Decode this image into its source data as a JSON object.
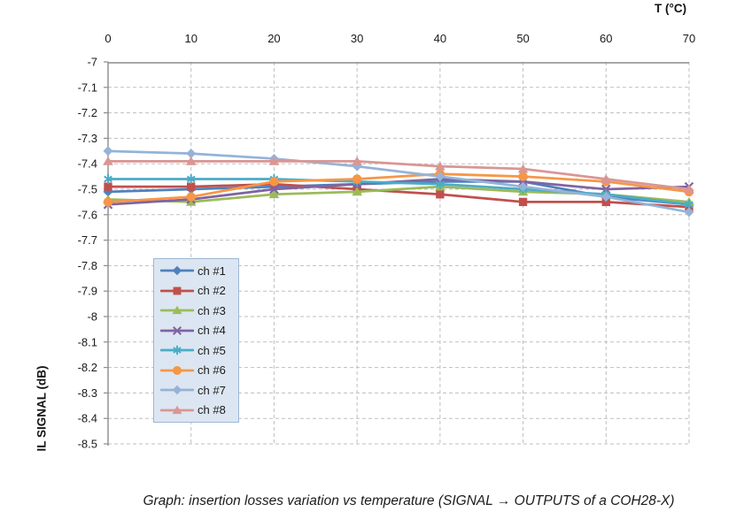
{
  "caption": "Graph: insertion losses variation vs temperature (SIGNAL → OUTPUTS of a COH28-X)",
  "chart_data": {
    "type": "line",
    "title": "",
    "x_axis": {
      "label": "T (°C)",
      "position": "top",
      "tick_labels": [
        "0",
        "10",
        "20",
        "30",
        "40",
        "50",
        "60",
        "70"
      ],
      "range": [
        0,
        70
      ]
    },
    "y_axis": {
      "label": "IL SIGNAL (dB)",
      "tick_labels": [
        "-7",
        "-7.1",
        "-7.2",
        "-7.3",
        "-7.4",
        "-7.5",
        "-7.6",
        "-7.7",
        "-7.8",
        "-7.9",
        "-8",
        "-8.1",
        "-8.2",
        "-8.3",
        "-8.4",
        "-8.5"
      ],
      "range": [
        -8.5,
        -7
      ]
    },
    "x": [
      0,
      10,
      20,
      30,
      40,
      50,
      60,
      70
    ],
    "series": [
      {
        "name": "ch #1",
        "color": "#4F81BD",
        "marker": "diamond",
        "values": [
          -7.51,
          -7.5,
          -7.49,
          -7.48,
          -7.47,
          -7.47,
          -7.53,
          -7.56
        ]
      },
      {
        "name": "ch #2",
        "color": "#C0504D",
        "marker": "square",
        "values": [
          -7.49,
          -7.49,
          -7.48,
          -7.5,
          -7.52,
          -7.55,
          -7.55,
          -7.57
        ]
      },
      {
        "name": "ch #3",
        "color": "#9BBB59",
        "marker": "triangle",
        "values": [
          -7.54,
          -7.55,
          -7.52,
          -7.51,
          -7.49,
          -7.51,
          -7.52,
          -7.55
        ]
      },
      {
        "name": "ch #4",
        "color": "#8064A2",
        "marker": "x",
        "values": [
          -7.56,
          -7.54,
          -7.5,
          -7.48,
          -7.46,
          -7.47,
          -7.5,
          -7.49
        ]
      },
      {
        "name": "ch #5",
        "color": "#4BACC6",
        "marker": "asterisk",
        "values": [
          -7.46,
          -7.46,
          -7.46,
          -7.47,
          -7.48,
          -7.5,
          -7.52,
          -7.56
        ]
      },
      {
        "name": "ch #6",
        "color": "#F79646",
        "marker": "circle",
        "values": [
          -7.55,
          -7.53,
          -7.47,
          -7.46,
          -7.44,
          -7.45,
          -7.47,
          -7.51
        ]
      },
      {
        "name": "ch #7",
        "color": "#95B3D7",
        "marker": "diamond",
        "values": [
          -7.35,
          -7.36,
          -7.38,
          -7.41,
          -7.45,
          -7.49,
          -7.53,
          -7.59
        ]
      },
      {
        "name": "ch #8",
        "color": "#D99694",
        "marker": "triangle",
        "values": [
          -7.39,
          -7.39,
          -7.39,
          -7.39,
          -7.41,
          -7.42,
          -7.46,
          -7.5
        ]
      }
    ],
    "grid": "dashed",
    "grid_color": "#BFBFBF",
    "axis_color": "#8C8C8C",
    "plot_bg": "#FFFFFF",
    "legend": {
      "position": "inside-left",
      "fill": "#DCE6F2",
      "border_color": "#9FB6D4"
    }
  }
}
